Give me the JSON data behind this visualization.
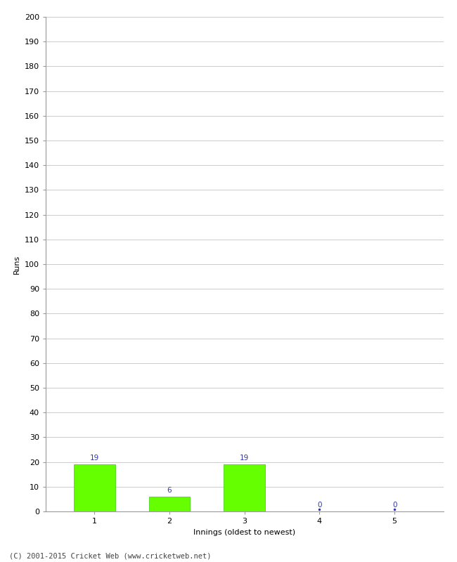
{
  "categories": [
    1,
    2,
    3,
    4,
    5
  ],
  "values": [
    19,
    6,
    19,
    0,
    0
  ],
  "bar_color": "#66ff00",
  "bar_edge_color": "#33cc00",
  "zero_marker_color": "#3333aa",
  "xlabel": "Innings (oldest to newest)",
  "ylabel": "Runs",
  "ylim": [
    0,
    200
  ],
  "yticks": [
    0,
    10,
    20,
    30,
    40,
    50,
    60,
    70,
    80,
    90,
    100,
    110,
    120,
    130,
    140,
    150,
    160,
    170,
    180,
    190,
    200
  ],
  "footer": "(C) 2001-2015 Cricket Web (www.cricketweb.net)",
  "label_color": "#3333aa",
  "label_fontsize": 7.5,
  "axis_label_fontsize": 8,
  "tick_fontsize": 8,
  "footer_fontsize": 7.5,
  "bar_width": 0.55,
  "grid_color": "#cccccc",
  "spine_color": "#999999"
}
